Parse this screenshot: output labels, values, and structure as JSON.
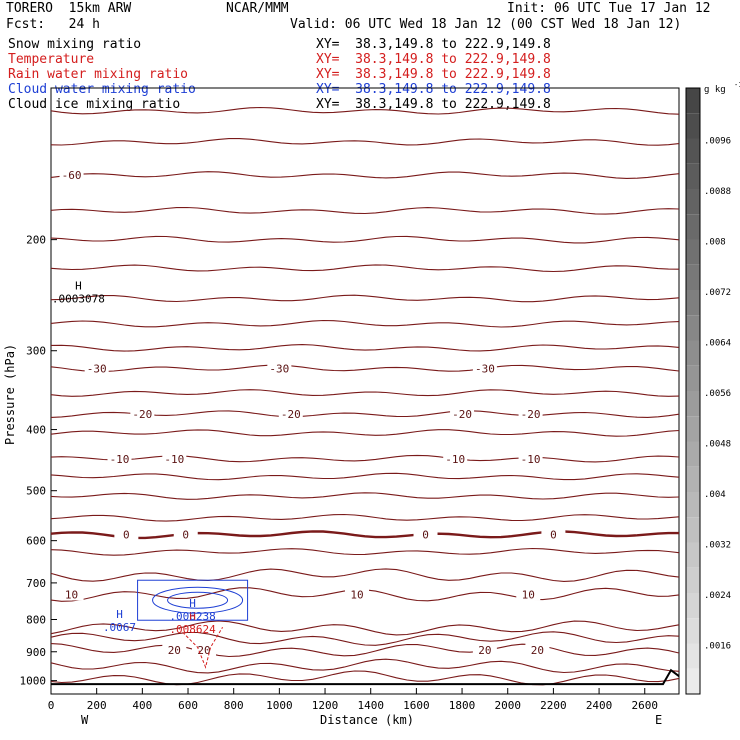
{
  "header": {
    "model": "TORERO  15km ARW",
    "center": "NCAR/MMM",
    "init": "Init: 06 UTC Tue 17 Jan 12",
    "fcst": "Fcst:   24 h",
    "valid": "Valid: 06 UTC Wed 18 Jan 12 (00 CST Wed 18 Jan 12)"
  },
  "fields": [
    {
      "name": "Snow mixing ratio",
      "xy": "XY=  38.3,149.8 to 222.9,149.8",
      "color": "#000000"
    },
    {
      "name": "Temperature",
      "xy": "XY=  38.3,149.8 to 222.9,149.8",
      "color": "#d41e1e"
    },
    {
      "name": "Rain water mixing ratio",
      "xy": "XY=  38.3,149.8 to 222.9,149.8",
      "color": "#d41e1e"
    },
    {
      "name": "Cloud water mixing ratio",
      "xy": "XY=  38.3,149.8 to 222.9,149.8",
      "color": "#1e3fd4"
    },
    {
      "name": "Cloud ice mixing ratio",
      "xy": "XY=  38.3,149.8 to 222.9,149.8",
      "color": "#000000"
    }
  ],
  "chart_data": {
    "type": "contour-cross-section",
    "xlabel": "Distance (km)",
    "ylabel": "Pressure (hPa)",
    "x_ticks": [
      0,
      200,
      400,
      600,
      800,
      1000,
      1200,
      1400,
      1600,
      1800,
      2000,
      2200,
      2400,
      2600
    ],
    "x_range": [
      0,
      2750
    ],
    "y_ticks": [
      200,
      300,
      400,
      500,
      600,
      700,
      800,
      900,
      1000
    ],
    "y_range": [
      1050,
      115
    ],
    "x_end_labels": {
      "left": "W",
      "right": "E"
    },
    "temperature_contours": [
      {
        "p": 125
      },
      {
        "p": 140
      },
      {
        "p": 158,
        "label": "-60",
        "label_x": [
          90
        ]
      },
      {
        "p": 180
      },
      {
        "p": 200
      },
      {
        "p": 222
      },
      {
        "p": 248
      },
      {
        "p": 272
      },
      {
        "p": 297
      },
      {
        "p": 320,
        "label": "-30",
        "label_x": [
          200,
          1000,
          1900
        ]
      },
      {
        "p": 350
      },
      {
        "p": 378,
        "label": "-20",
        "label_x": [
          400,
          1050,
          1800,
          2100
        ]
      },
      {
        "p": 405
      },
      {
        "p": 445,
        "label": "-10",
        "label_x": [
          300,
          540,
          1770,
          2100
        ]
      },
      {
        "p": 475
      },
      {
        "p": 510
      },
      {
        "p": 552
      },
      {
        "p": 587,
        "label": "0",
        "label_x": [
          330,
          590,
          1640,
          2200
        ],
        "bold": true
      },
      {
        "p": 625
      },
      {
        "p": 680
      },
      {
        "p": 730,
        "label": "10",
        "label_x": [
          90,
          1340,
          2090
        ]
      },
      {
        "p": 825
      },
      {
        "p": 858
      },
      {
        "p": 895,
        "label": "20",
        "label_x": [
          540,
          670,
          1900,
          2130
        ]
      },
      {
        "p": 948
      },
      {
        "p": 990
      }
    ],
    "extrema": [
      {
        "field": "snow",
        "type": "H",
        "value": ".0003078",
        "x": 120,
        "p": 240
      },
      {
        "field": "cloud_water",
        "type": "H",
        "value": ".0067",
        "x": 300,
        "p": 795
      },
      {
        "field": "cloud_water",
        "type": "H",
        "value": ".006238",
        "x": 620,
        "p": 765
      },
      {
        "field": "rain_water",
        "type": "H",
        "value": ".008624",
        "x": 620,
        "p": 801
      }
    ],
    "colorbar": {
      "unit_label": "g kg",
      "unit_exp": "-1",
      "ticks": [
        ".0096",
        ".0088",
        ".008",
        ".0072",
        ".0064",
        ".0056",
        ".0048",
        ".004",
        ".0032",
        ".0024",
        ".0016"
      ]
    }
  }
}
